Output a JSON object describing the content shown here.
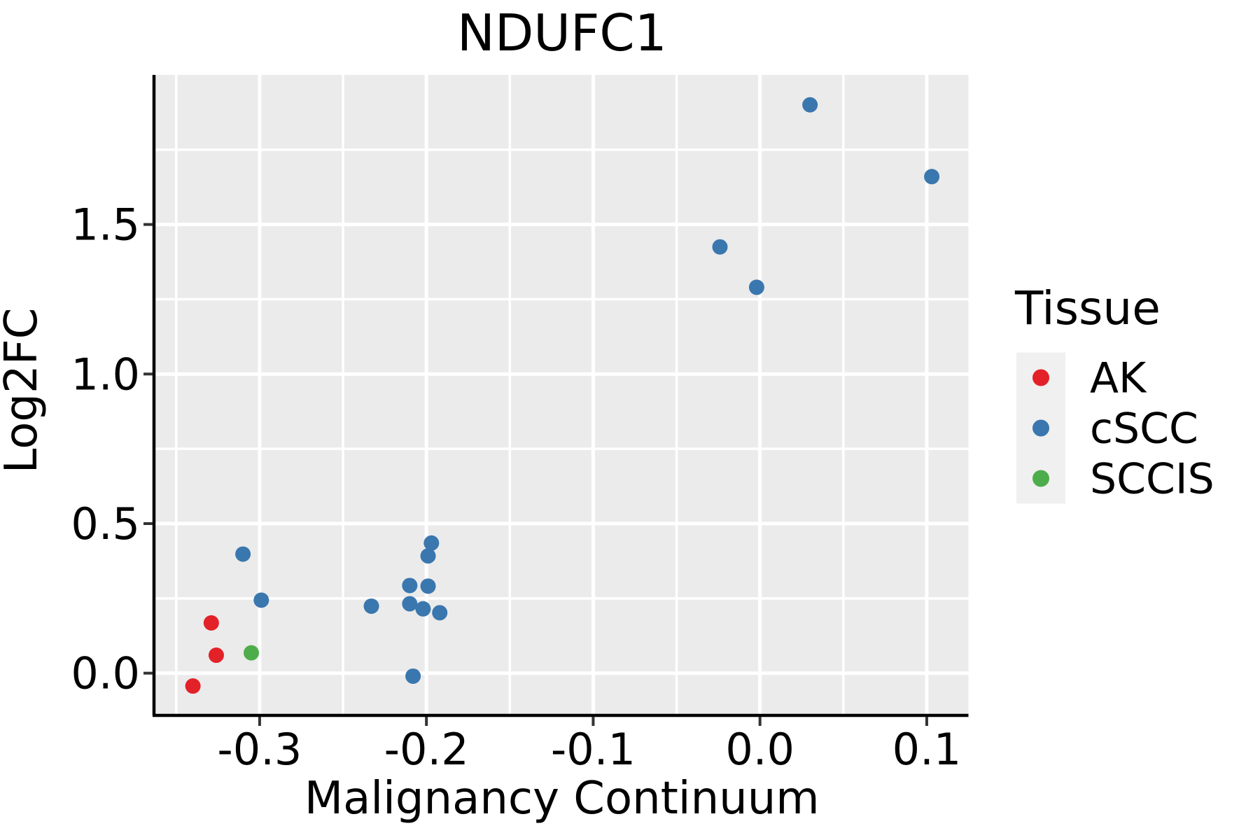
{
  "figure": {
    "title": "NDUFC1",
    "background_color": "#FFFFFF"
  },
  "chart_data": {
    "type": "scatter",
    "title": "NDUFC1",
    "xlabel": "Malignancy Continuum",
    "ylabel": "Log2FC",
    "xlim": [
      -0.3625,
      0.125
    ],
    "ylim": [
      -0.1365,
      2.0
    ],
    "x_major_ticks": [
      -0.3,
      -0.2,
      -0.1,
      0.0,
      0.1
    ],
    "x_tick_labels": [
      "-0.3",
      "-0.2",
      "-0.1",
      "0.0",
      "0.1"
    ],
    "x_minor_ticks": [
      -0.35,
      -0.25,
      -0.15,
      -0.05,
      0.05
    ],
    "y_major_ticks": [
      0.0,
      0.5,
      1.0,
      1.5
    ],
    "y_tick_labels": [
      "0.0",
      "0.5",
      "1.0",
      "1.5"
    ],
    "y_minor_ticks": [
      0.25,
      0.75,
      1.25,
      1.75
    ],
    "grid": "major-and-minor-white-on-gray",
    "legend": {
      "title": "Tissue",
      "position": "right",
      "entries": [
        {
          "label": "AK",
          "color": "#E32128"
        },
        {
          "label": "cSCC",
          "color": "#3A77AF"
        },
        {
          "label": "SCCIS",
          "color": "#4EAD4B"
        }
      ]
    },
    "series": [
      {
        "name": "AK",
        "color": "#E32128",
        "points": [
          [
            -0.329,
            0.168
          ],
          [
            -0.326,
            0.06
          ],
          [
            -0.34,
            -0.043
          ]
        ]
      },
      {
        "name": "cSCC",
        "color": "#3A77AF",
        "points": [
          [
            0.03,
            1.9
          ],
          [
            0.103,
            1.66
          ],
          [
            -0.024,
            1.425
          ],
          [
            -0.002,
            1.29
          ],
          [
            -0.31,
            0.398
          ],
          [
            -0.299,
            0.244
          ],
          [
            -0.197,
            0.435
          ],
          [
            -0.199,
            0.392
          ],
          [
            -0.21,
            0.293
          ],
          [
            -0.199,
            0.291
          ],
          [
            -0.233,
            0.224
          ],
          [
            -0.21,
            0.232
          ],
          [
            -0.202,
            0.215
          ],
          [
            -0.192,
            0.202
          ],
          [
            -0.208,
            -0.01
          ]
        ]
      },
      {
        "name": "SCCIS",
        "color": "#4EAD4B",
        "points": [
          [
            -0.305,
            0.068
          ]
        ]
      }
    ],
    "style": {
      "panel_background": "#EBEBEB",
      "grid_color": "#FFFFFF",
      "axis_line_color": "#000000",
      "tick_mark_color": "#333333",
      "text_color": "#000000",
      "legend_key_background": "#F0F0F0"
    }
  }
}
